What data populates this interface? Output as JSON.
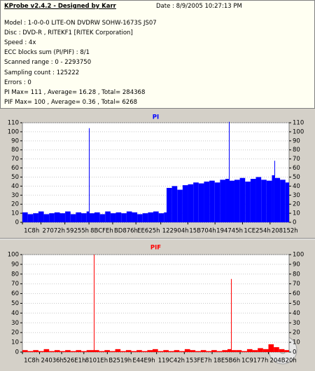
{
  "header": {
    "title": "KProbe v2.4.2 - Designed by Karr",
    "date": "Date : 8/9/2005 10:27:13 PM",
    "lines": [
      "Model : 1-0-0-0 LITE-ON DVDRW SOHW-1673S JS07",
      "Disc : DVD-R , RITEKF1 [RITEK Corporation]",
      "Speed : 4x",
      "ECC blocks sum (PI/PIF) : 8/1",
      "Scanned range : 0 - 2293750",
      "Sampling count : 125222",
      "Errors : 0",
      "PI Max= 111 , Average= 16.28 , Total= 284368",
      "PIF Max= 100 , Average= 0.36 , Total= 6268"
    ]
  },
  "chart_data": [
    {
      "type": "bar",
      "title": "PI",
      "color": "#0000ff",
      "x": [
        0,
        46000,
        92000,
        138000,
        184000,
        230000,
        276000,
        322000,
        368000,
        414000,
        460000,
        506000,
        552000,
        572000,
        575000,
        620000,
        666000,
        712000,
        758000,
        804000,
        850000,
        896000,
        942000,
        988000,
        1034000,
        1080000,
        1126000,
        1172000,
        1218000,
        1240000,
        1286000,
        1332000,
        1378000,
        1424000,
        1470000,
        1516000,
        1562000,
        1608000,
        1654000,
        1700000,
        1746000,
        1776000,
        1779000,
        1824000,
        1870000,
        1916000,
        1962000,
        2008000,
        2054000,
        2100000,
        2146000,
        2167000,
        2170000,
        2216000,
        2262000
      ],
      "values": [
        11,
        9,
        10,
        12,
        9,
        10,
        11,
        10,
        12,
        9,
        11,
        10,
        12,
        104,
        10,
        11,
        9,
        12,
        10,
        11,
        10,
        12,
        11,
        9,
        10,
        11,
        12,
        10,
        11,
        38,
        40,
        36,
        41,
        42,
        44,
        43,
        45,
        46,
        44,
        47,
        48,
        111,
        46,
        47,
        49,
        45,
        48,
        50,
        47,
        46,
        52,
        68,
        49,
        47,
        44
      ],
      "xlim": [
        0,
        2293750
      ],
      "ylim": [
        0,
        110
      ],
      "yticks": [
        0,
        10,
        20,
        30,
        40,
        50,
        60,
        70,
        80,
        90,
        100,
        110
      ],
      "xticks": [
        {
          "value": 456,
          "label": "1C8h"
        },
        {
          "value": 159858,
          "label": "27072h"
        },
        {
          "value": 365141,
          "label": "59255h"
        },
        {
          "value": 572670,
          "label": "8BCFEh"
        },
        {
          "value": 776310,
          "label": "BD876h"
        },
        {
          "value": 976421,
          "label": "EE625h"
        },
        {
          "value": 1190148,
          "label": "122904h"
        },
        {
          "value": 1423108,
          "label": "15B704h"
        },
        {
          "value": 1656645,
          "label": "194745h"
        },
        {
          "value": 1892948,
          "label": "1CE254h"
        },
        {
          "value": 2130258,
          "label": "208152h"
        }
      ],
      "grid": true
    },
    {
      "type": "bar",
      "title": "PIF",
      "color": "#ff0000",
      "x": [
        0,
        46000,
        92000,
        138000,
        184000,
        230000,
        276000,
        322000,
        368000,
        414000,
        460000,
        506000,
        552000,
        614000,
        617000,
        660000,
        706000,
        752000,
        798000,
        844000,
        890000,
        936000,
        982000,
        1028000,
        1074000,
        1120000,
        1166000,
        1212000,
        1258000,
        1304000,
        1350000,
        1396000,
        1442000,
        1488000,
        1534000,
        1580000,
        1626000,
        1672000,
        1718000,
        1764000,
        1794000,
        1797000,
        1840000,
        1886000,
        1932000,
        1978000,
        2024000,
        2070000,
        2116000,
        2162000,
        2208000,
        2254000
      ],
      "values": [
        2,
        1,
        2,
        1,
        3,
        1,
        2,
        1,
        2,
        1,
        2,
        1,
        2,
        100,
        2,
        1,
        2,
        1,
        3,
        1,
        2,
        1,
        2,
        1,
        2,
        3,
        1,
        2,
        1,
        2,
        1,
        3,
        2,
        1,
        2,
        1,
        2,
        1,
        2,
        3,
        75,
        2,
        2,
        1,
        3,
        2,
        4,
        3,
        8,
        5,
        3,
        2
      ],
      "xlim": [
        0,
        2293750
      ],
      "ylim": [
        0,
        100
      ],
      "yticks": [
        0,
        10,
        20,
        30,
        40,
        50,
        60,
        70,
        80,
        90,
        100
      ],
      "xticks": [
        {
          "value": 456,
          "label": "1C8h"
        },
        {
          "value": 147510,
          "label": "24036h"
        },
        {
          "value": 337633,
          "label": "526E1h"
        },
        {
          "value": 528414,
          "label": "8101Eh"
        },
        {
          "value": 730393,
          "label": "B2519h"
        },
        {
          "value": 935145,
          "label": "E44E9h"
        },
        {
          "value": 1154114,
          "label": "119C42h"
        },
        {
          "value": 1392615,
          "label": "153FE7h"
        },
        {
          "value": 1631670,
          "label": "18E5B6h"
        },
        {
          "value": 1872247,
          "label": "1C9177h"
        },
        {
          "value": 2116384,
          "label": "204B20h"
        }
      ],
      "grid": true
    }
  ]
}
